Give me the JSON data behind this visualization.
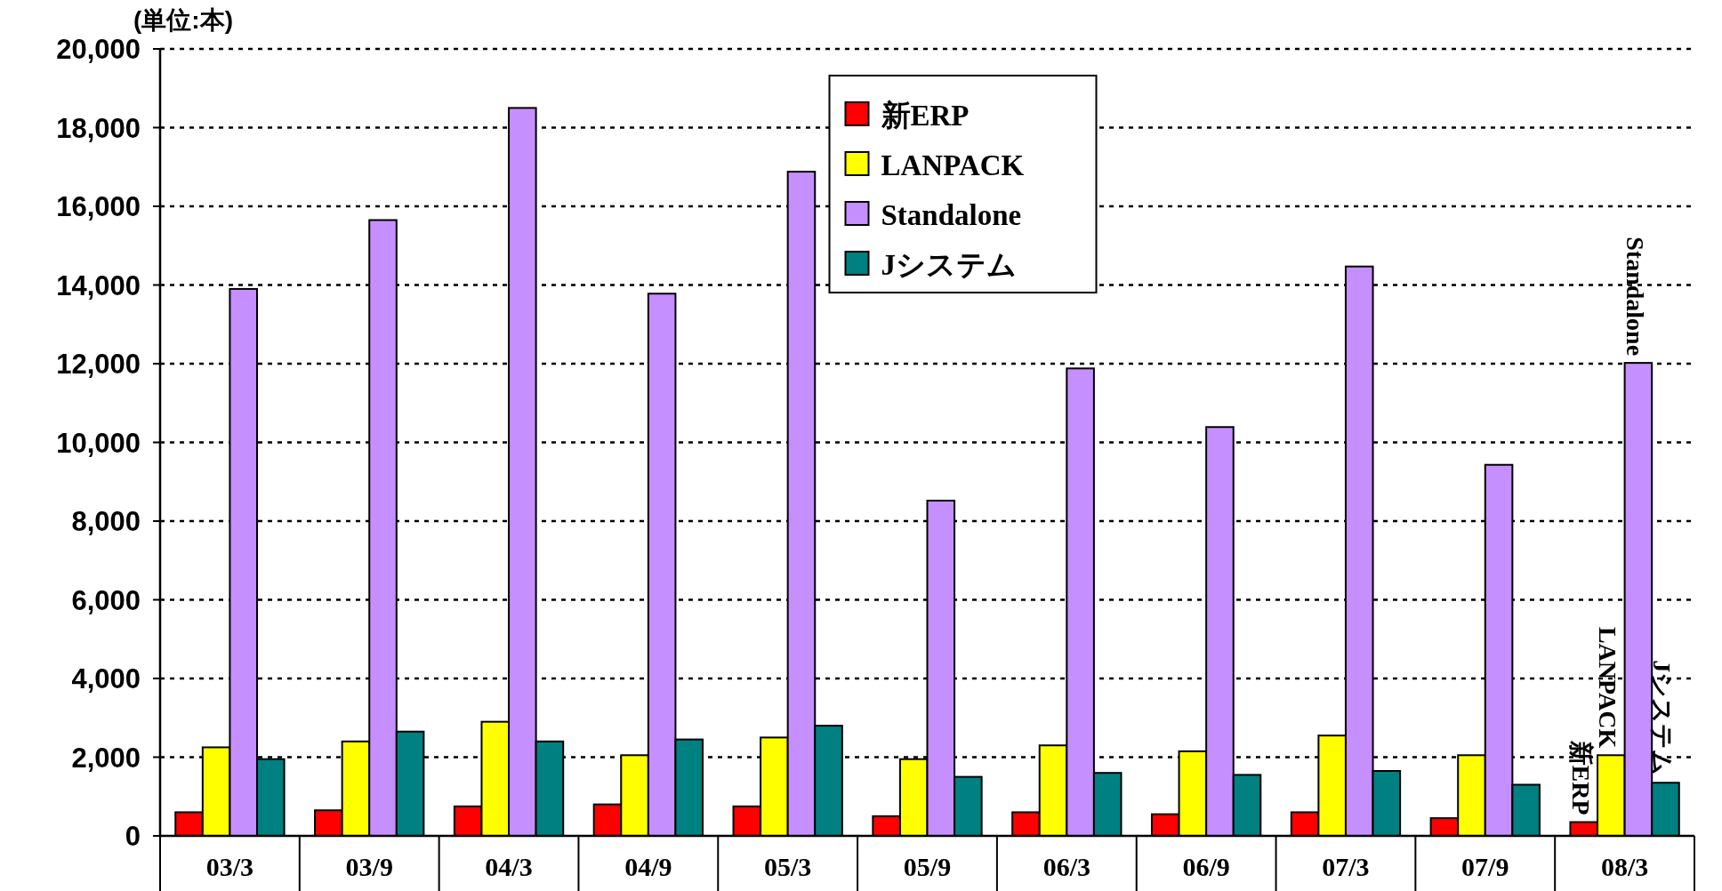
{
  "chart_data": {
    "type": "bar",
    "ylabel": "(単位:本)",
    "categories": [
      "03/3",
      "03/9",
      "04/3",
      "04/9",
      "05/3",
      "05/9",
      "06/3",
      "06/9",
      "07/3",
      "07/9",
      "08/3"
    ],
    "series": [
      {
        "name": "新ERP",
        "color": "#ff0000",
        "values": [
          600,
          650,
          750,
          800,
          750,
          500,
          600,
          550,
          600,
          450,
          350
        ]
      },
      {
        "name": "LANPACK",
        "color": "#ffff00",
        "values": [
          2250,
          2400,
          2900,
          2050,
          2500,
          1950,
          2300,
          2150,
          2550,
          2050,
          2050
        ]
      },
      {
        "name": "Standalone",
        "color": "#c58fff",
        "values": [
          13900,
          15650,
          18500,
          13780,
          16880,
          8520,
          11880,
          10390,
          14470,
          9430,
          12020
        ]
      },
      {
        "name": "Jシステム",
        "color": "#008080",
        "values": [
          1950,
          2650,
          2400,
          2450,
          2800,
          1500,
          1600,
          1550,
          1650,
          1300,
          1350
        ]
      }
    ],
    "ylim": [
      0,
      20000
    ],
    "yticks": [
      {
        "value": 0,
        "label": "0"
      },
      {
        "value": 2000,
        "label": "2,000"
      },
      {
        "value": 4000,
        "label": "4,000"
      },
      {
        "value": 6000,
        "label": "6,000"
      },
      {
        "value": 8000,
        "label": "8,000"
      },
      {
        "value": 10000,
        "label": "10,000"
      },
      {
        "value": 12000,
        "label": "12,000"
      },
      {
        "value": 14000,
        "label": "14,000"
      },
      {
        "value": 16000,
        "label": "16,000"
      },
      {
        "value": 18000,
        "label": "18,000"
      },
      {
        "value": 20000,
        "label": "20,000"
      }
    ],
    "grid": "y",
    "legend": "top"
  }
}
